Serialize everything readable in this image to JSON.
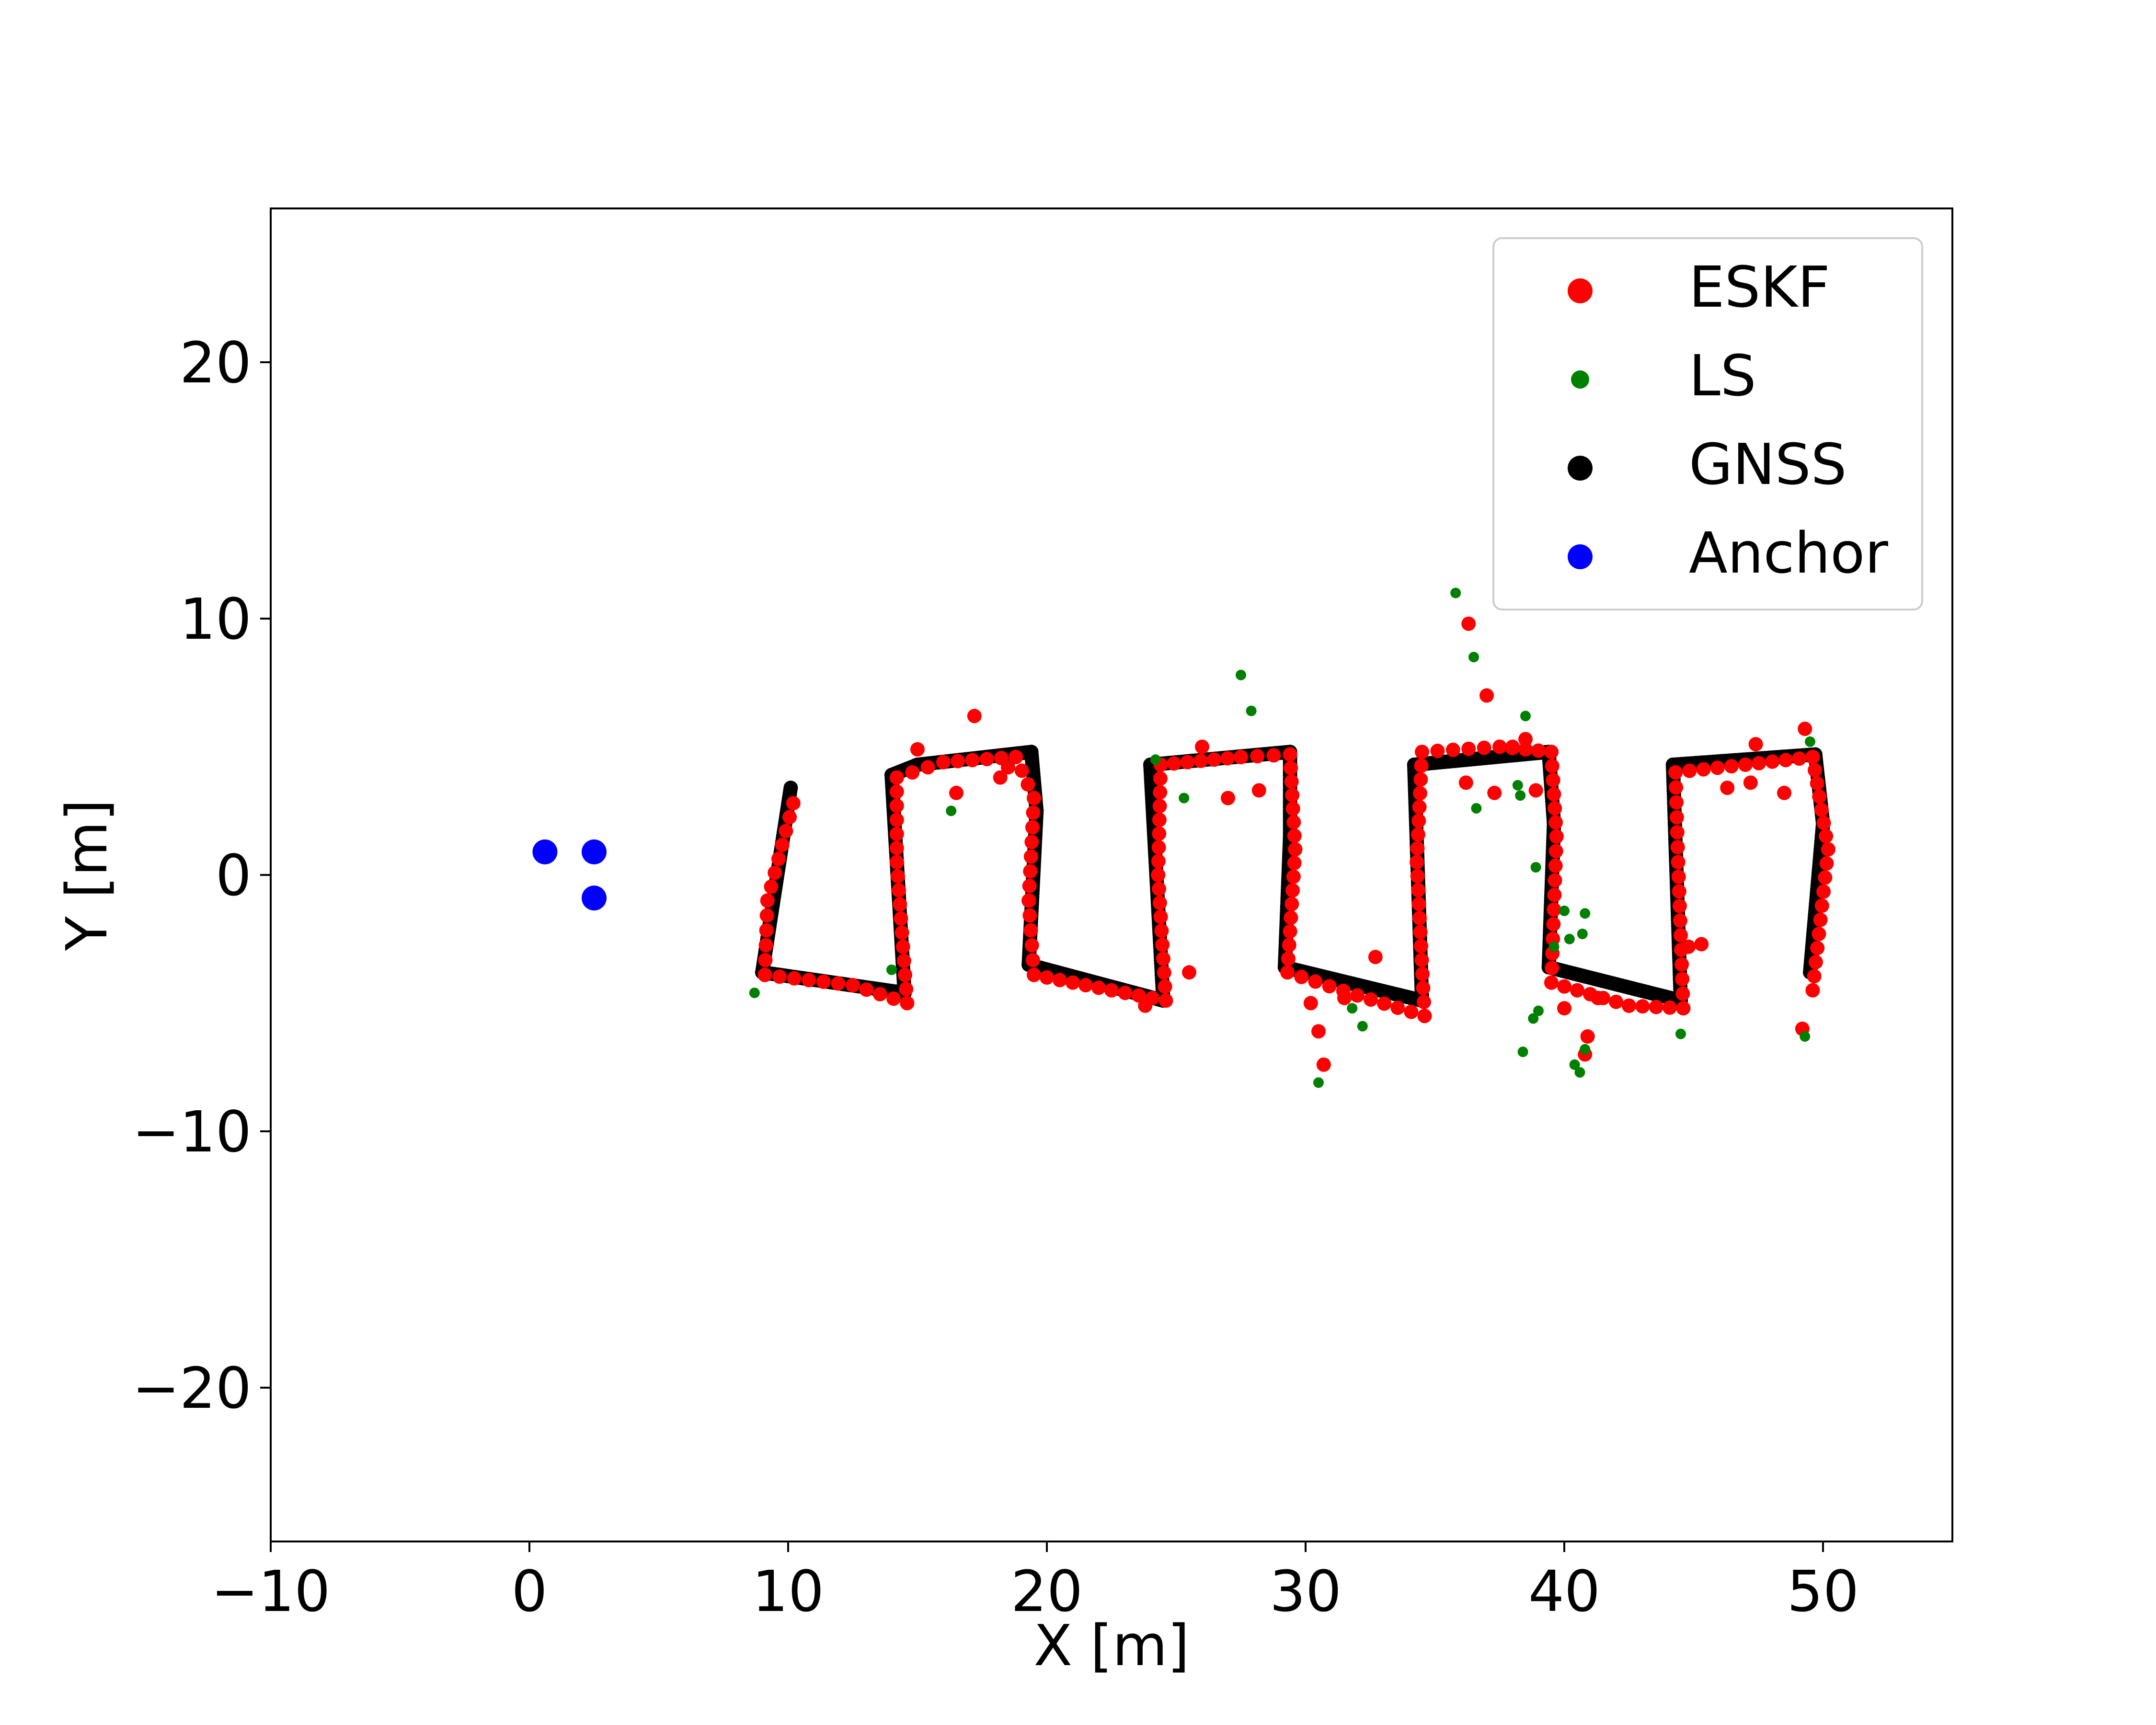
{
  "chart_data": {
    "type": "scatter",
    "title": "",
    "xlabel": "X [m]",
    "ylabel": "Y [m]",
    "xlim": [
      -10,
      55
    ],
    "ylim": [
      -26,
      26
    ],
    "xticks": [
      -10,
      0,
      10,
      20,
      30,
      40,
      50
    ],
    "yticks": [
      -20,
      -10,
      0,
      10,
      20
    ],
    "xtick_labels": [
      "−10",
      "0",
      "10",
      "20",
      "30",
      "40",
      "50"
    ],
    "ytick_labels": [
      "−20",
      "−10",
      "0",
      "10",
      "20"
    ],
    "grid": false,
    "legend_position": "top-right",
    "series": [
      {
        "name": "GNSS",
        "color": "#000000",
        "marker": "dense-path",
        "path": [
          [
            10.1,
            3.4
          ],
          [
            9.0,
            -3.8
          ],
          [
            14.5,
            -4.6
          ],
          [
            14.0,
            3.9
          ],
          [
            15.0,
            4.3
          ],
          [
            19.4,
            4.8
          ],
          [
            19.6,
            2.5
          ],
          [
            19.3,
            -3.5
          ],
          [
            24.5,
            -4.9
          ],
          [
            24.0,
            4.3
          ],
          [
            29.4,
            4.8
          ],
          [
            29.4,
            1.5
          ],
          [
            29.2,
            -3.6
          ],
          [
            34.5,
            -4.9
          ],
          [
            34.2,
            4.3
          ],
          [
            39.4,
            4.8
          ],
          [
            39.6,
            2.0
          ],
          [
            39.4,
            -3.6
          ],
          [
            44.5,
            -4.9
          ],
          [
            44.2,
            4.3
          ],
          [
            49.7,
            4.7
          ],
          [
            50.0,
            2.0
          ],
          [
            49.5,
            -3.8
          ]
        ]
      },
      {
        "name": "ESKF",
        "color": "#ff0000",
        "marker": "circle",
        "path": [
          [
            10.2,
            2.8
          ],
          [
            9.2,
            -1.0
          ],
          [
            9.1,
            -3.9
          ],
          [
            12.5,
            -4.3
          ],
          [
            14.6,
            -5.0
          ],
          [
            14.2,
            0.5
          ],
          [
            14.2,
            3.8
          ],
          [
            16.0,
            4.4
          ],
          [
            18.8,
            4.6
          ],
          [
            19.5,
            3.0
          ],
          [
            19.3,
            -1.0
          ],
          [
            19.5,
            -3.9
          ],
          [
            22.5,
            -4.5
          ],
          [
            24.6,
            -4.9
          ],
          [
            24.3,
            0.0
          ],
          [
            24.4,
            4.3
          ],
          [
            27.5,
            4.6
          ],
          [
            29.4,
            4.7
          ],
          [
            29.6,
            1.0
          ],
          [
            29.3,
            -3.8
          ],
          [
            32.0,
            -4.7
          ],
          [
            34.6,
            -5.5
          ],
          [
            34.3,
            0.5
          ],
          [
            34.5,
            4.8
          ],
          [
            37.5,
            5.0
          ],
          [
            39.5,
            4.8
          ],
          [
            39.7,
            1.5
          ],
          [
            39.5,
            -4.2
          ],
          [
            42.5,
            -5.1
          ],
          [
            44.6,
            -5.2
          ],
          [
            44.4,
            0.5
          ],
          [
            44.3,
            4.0
          ],
          [
            47.0,
            4.3
          ],
          [
            49.6,
            4.6
          ],
          [
            50.2,
            1.0
          ],
          [
            49.6,
            -4.5
          ]
        ],
        "points": [
          [
            17.2,
            6.2
          ],
          [
            15.0,
            4.9
          ],
          [
            16.5,
            3.2
          ],
          [
            18.2,
            3.8
          ],
          [
            18.5,
            4.2
          ],
          [
            26.0,
            5.0
          ],
          [
            27.0,
            3.0
          ],
          [
            28.2,
            3.3
          ],
          [
            25.5,
            -3.8
          ],
          [
            23.8,
            -5.1
          ],
          [
            30.5,
            -6.1
          ],
          [
            30.7,
            -7.4
          ],
          [
            30.2,
            -5.0
          ],
          [
            32.7,
            -3.2
          ],
          [
            31.5,
            -4.8
          ],
          [
            36.3,
            9.8
          ],
          [
            37.0,
            7.0
          ],
          [
            36.2,
            3.6
          ],
          [
            37.3,
            3.2
          ],
          [
            38.0,
            5.0
          ],
          [
            38.5,
            5.3
          ],
          [
            38.9,
            3.3
          ],
          [
            40.0,
            -5.2
          ],
          [
            40.8,
            -7.0
          ],
          [
            40.9,
            -6.3
          ],
          [
            41.3,
            -4.8
          ],
          [
            44.8,
            -2.8
          ],
          [
            45.3,
            -2.7
          ],
          [
            46.3,
            3.4
          ],
          [
            47.2,
            3.6
          ],
          [
            48.5,
            3.2
          ],
          [
            49.3,
            5.7
          ],
          [
            49.2,
            -6.0
          ],
          [
            47.4,
            5.1
          ]
        ]
      },
      {
        "name": "LS",
        "color": "#008000",
        "marker": "circle",
        "points": [
          [
            35.8,
            11.0
          ],
          [
            36.5,
            8.5
          ],
          [
            38.5,
            6.2
          ],
          [
            27.5,
            7.8
          ],
          [
            27.9,
            6.4
          ],
          [
            38.3,
            3.1
          ],
          [
            38.9,
            0.3
          ],
          [
            40.0,
            -1.4
          ],
          [
            40.8,
            -1.5
          ],
          [
            40.2,
            -2.5
          ],
          [
            40.7,
            -2.3
          ],
          [
            39.6,
            -2.8
          ],
          [
            39.0,
            -5.3
          ],
          [
            38.8,
            -5.6
          ],
          [
            38.4,
            -6.9
          ],
          [
            40.4,
            -7.4
          ],
          [
            40.8,
            -6.8
          ],
          [
            40.6,
            -7.7
          ],
          [
            30.5,
            -8.1
          ],
          [
            32.2,
            -5.9
          ],
          [
            31.8,
            -5.2
          ],
          [
            8.7,
            -4.6
          ],
          [
            16.3,
            2.5
          ],
          [
            25.3,
            3.0
          ],
          [
            14.0,
            -3.7
          ],
          [
            36.6,
            2.6
          ],
          [
            38.2,
            3.5
          ],
          [
            44.5,
            -6.2
          ],
          [
            49.3,
            -6.3
          ],
          [
            49.5,
            5.2
          ],
          [
            24.2,
            4.5
          ]
        ]
      },
      {
        "name": "Anchor",
        "color": "#0000ff",
        "marker": "circle-large",
        "points": [
          [
            0.6,
            0.9
          ],
          [
            2.5,
            0.9
          ],
          [
            2.5,
            -0.9
          ]
        ]
      }
    ]
  }
}
